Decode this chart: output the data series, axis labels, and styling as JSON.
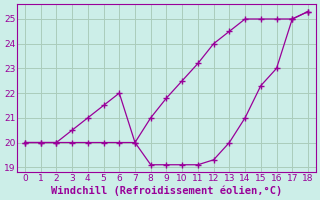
{
  "x": [
    0,
    1,
    2,
    3,
    4,
    5,
    6,
    7,
    8,
    9,
    10,
    11,
    12,
    13,
    14,
    15,
    16,
    17,
    18
  ],
  "y_upper": [
    20.0,
    20.0,
    20.0,
    20.5,
    21.0,
    21.5,
    22.0,
    20.0,
    21.0,
    21.8,
    22.5,
    23.2,
    24.0,
    24.5,
    25.0,
    25.0,
    25.0,
    25.0,
    25.3
  ],
  "y_lower": [
    20.0,
    20.0,
    20.0,
    20.0,
    20.0,
    20.0,
    20.0,
    20.0,
    19.1,
    19.1,
    19.1,
    19.1,
    19.3,
    20.0,
    21.0,
    22.3,
    23.0,
    25.0,
    25.3
  ],
  "line_color": "#990099",
  "bg_color": "#cceee8",
  "grid_color": "#aaccbb",
  "xlabel": "Windchill (Refroidissement éolien,°C)",
  "xlim": [
    -0.5,
    18.5
  ],
  "ylim": [
    18.8,
    25.6
  ],
  "yticks": [
    19,
    20,
    21,
    22,
    23,
    24,
    25
  ],
  "xticks": [
    0,
    1,
    2,
    3,
    4,
    5,
    6,
    7,
    8,
    9,
    10,
    11,
    12,
    13,
    14,
    15,
    16,
    17,
    18
  ],
  "tick_fontsize": 6.5,
  "xlabel_fontsize": 7.5
}
